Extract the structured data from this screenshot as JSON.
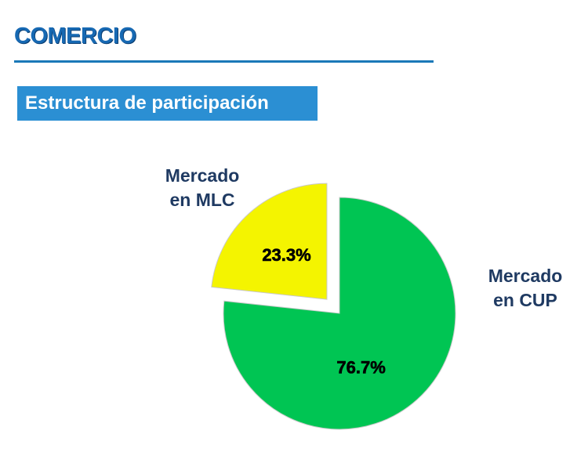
{
  "header": {
    "title": "COMERCIO",
    "section": "Estructura de participación"
  },
  "colors": {
    "title": "#1769b3",
    "rule": "#1a78b8",
    "banner": "#2b8fd3",
    "mlc": "#f4f400",
    "cup": "#00c553",
    "label_text": "#1f3a62"
  },
  "chart_data": {
    "type": "pie",
    "title": "",
    "slices": [
      {
        "label_line1": "Mercado",
        "label_line2": "en MLC",
        "value": 23.3,
        "value_label": "23.3%",
        "color": "#f4f400",
        "exploded": true
      },
      {
        "label_line1": "Mercado",
        "label_line2": "en CUP",
        "value": 76.7,
        "value_label": "76.7%",
        "color": "#00c553",
        "exploded": false
      }
    ]
  }
}
